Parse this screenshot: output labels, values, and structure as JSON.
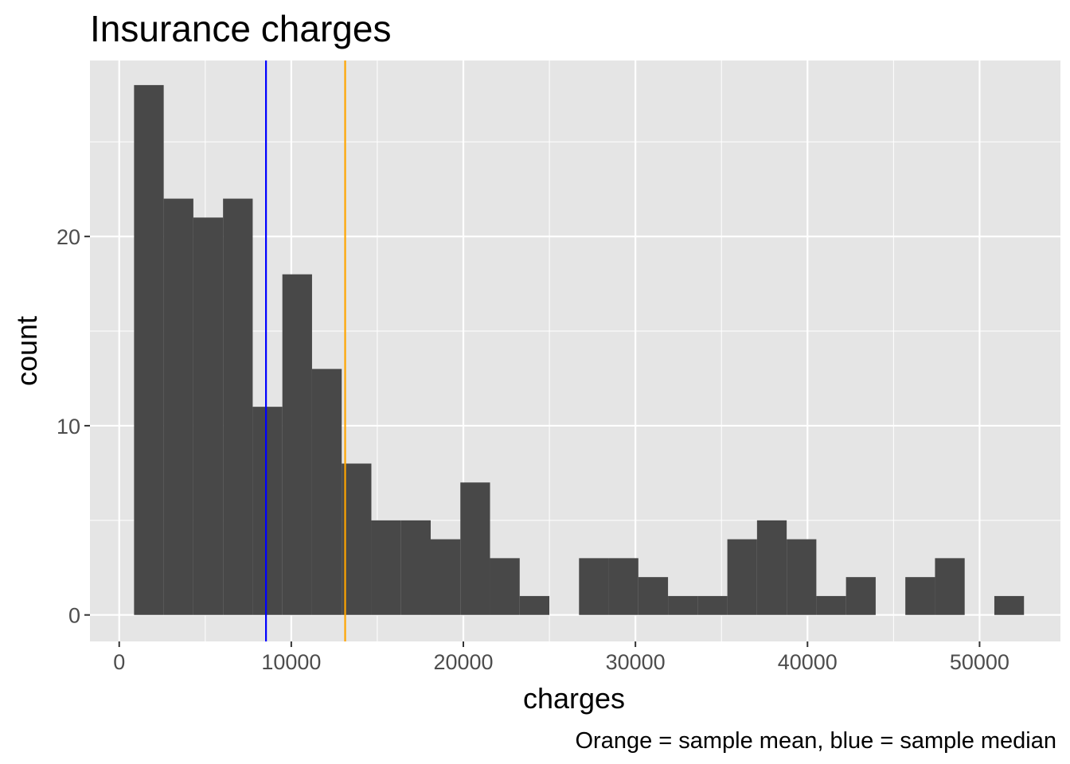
{
  "chart_data": {
    "type": "bar",
    "title": "Insurance charges",
    "xlabel": "charges",
    "ylabel": "count",
    "caption": "Orange = sample mean, blue = sample median",
    "xlim": [
      -1700,
      54700
    ],
    "ylim": [
      -1.4,
      29.3
    ],
    "x_ticks": [
      0,
      10000,
      20000,
      30000,
      40000,
      50000
    ],
    "x_tick_labels": [
      "0",
      "10000",
      "20000",
      "30000",
      "40000",
      "50000"
    ],
    "y_ticks": [
      0,
      10,
      20
    ],
    "y_tick_labels": [
      "0",
      "10",
      "20"
    ],
    "x_minor_ticks": [
      5000,
      15000,
      25000,
      35000,
      45000
    ],
    "y_minor_ticks": [
      5,
      15,
      25
    ],
    "grid": true,
    "bin_width": 1724,
    "bins": [
      {
        "x0": 862,
        "x1": 2586,
        "count": 28
      },
      {
        "x0": 2586,
        "x1": 4310,
        "count": 22
      },
      {
        "x0": 4310,
        "x1": 6034,
        "count": 21
      },
      {
        "x0": 6034,
        "x1": 7758,
        "count": 22
      },
      {
        "x0": 7758,
        "x1": 9482,
        "count": 11
      },
      {
        "x0": 9482,
        "x1": 11206,
        "count": 18
      },
      {
        "x0": 11206,
        "x1": 12930,
        "count": 13
      },
      {
        "x0": 12930,
        "x1": 14654,
        "count": 8
      },
      {
        "x0": 14654,
        "x1": 16378,
        "count": 5
      },
      {
        "x0": 16378,
        "x1": 18102,
        "count": 5
      },
      {
        "x0": 18102,
        "x1": 19826,
        "count": 4
      },
      {
        "x0": 19826,
        "x1": 21550,
        "count": 7
      },
      {
        "x0": 21550,
        "x1": 23274,
        "count": 3
      },
      {
        "x0": 23274,
        "x1": 24998,
        "count": 1
      },
      {
        "x0": 24998,
        "x1": 26722,
        "count": 0
      },
      {
        "x0": 26722,
        "x1": 28446,
        "count": 3
      },
      {
        "x0": 28446,
        "x1": 30170,
        "count": 3
      },
      {
        "x0": 30170,
        "x1": 31894,
        "count": 2
      },
      {
        "x0": 31894,
        "x1": 33618,
        "count": 1
      },
      {
        "x0": 33618,
        "x1": 35342,
        "count": 1
      },
      {
        "x0": 35342,
        "x1": 37066,
        "count": 4
      },
      {
        "x0": 37066,
        "x1": 38790,
        "count": 5
      },
      {
        "x0": 38790,
        "x1": 40514,
        "count": 4
      },
      {
        "x0": 40514,
        "x1": 42238,
        "count": 1
      },
      {
        "x0": 42238,
        "x1": 43962,
        "count": 2
      },
      {
        "x0": 43962,
        "x1": 45686,
        "count": 0
      },
      {
        "x0": 45686,
        "x1": 47410,
        "count": 2
      },
      {
        "x0": 47410,
        "x1": 49134,
        "count": 3
      },
      {
        "x0": 49134,
        "x1": 50858,
        "count": 0
      },
      {
        "x0": 50858,
        "x1": 52582,
        "count": 1
      }
    ],
    "reference_lines": [
      {
        "x": 8530,
        "color": "#0000ff"
      },
      {
        "x": 13130,
        "color": "#ffa500"
      }
    ]
  },
  "colors": {
    "panel_background": "#e5e5e5",
    "grid_line": "#ffffff",
    "bar_fill": "#484848",
    "tick_color": "#333333",
    "tick_text": "#4d4d4d",
    "title_text": "#000000"
  }
}
